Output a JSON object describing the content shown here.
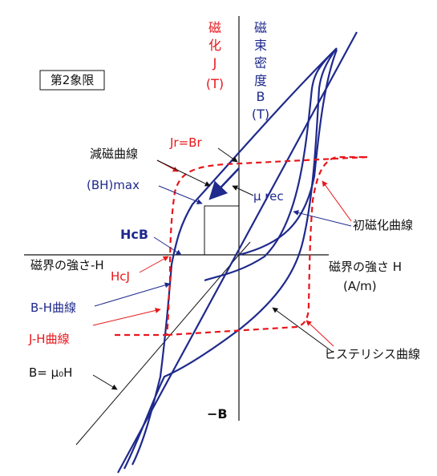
{
  "quadrant_label": "第2象限",
  "axes": {
    "y_red_chars": [
      "磁",
      "化",
      "J",
      "(T)"
    ],
    "y_blue_chars": [
      "磁",
      "束",
      "密",
      "度",
      "B",
      "(T)"
    ],
    "x_left": "磁界の強さ-H",
    "x_right_1": "磁界の強さ H",
    "x_right_2": "(A/m)",
    "neg_b": "−B"
  },
  "labels": {
    "jr_br": "Jr=Br",
    "demag": "減磁曲線",
    "bhmax": "(BH)max",
    "mu_rec": "μ rec",
    "hcb": "HcB",
    "hcj": "HcJ",
    "initial": "初磁化曲線",
    "bh_curve": "B-H曲線",
    "jh_curve": "J-H曲線",
    "b_mu0h": "B= μ₀H",
    "hysteresis": "ヒステリシス曲線"
  },
  "colors": {
    "blue": "#1f2a8c",
    "red": "#e8161b",
    "black": "#111111"
  }
}
